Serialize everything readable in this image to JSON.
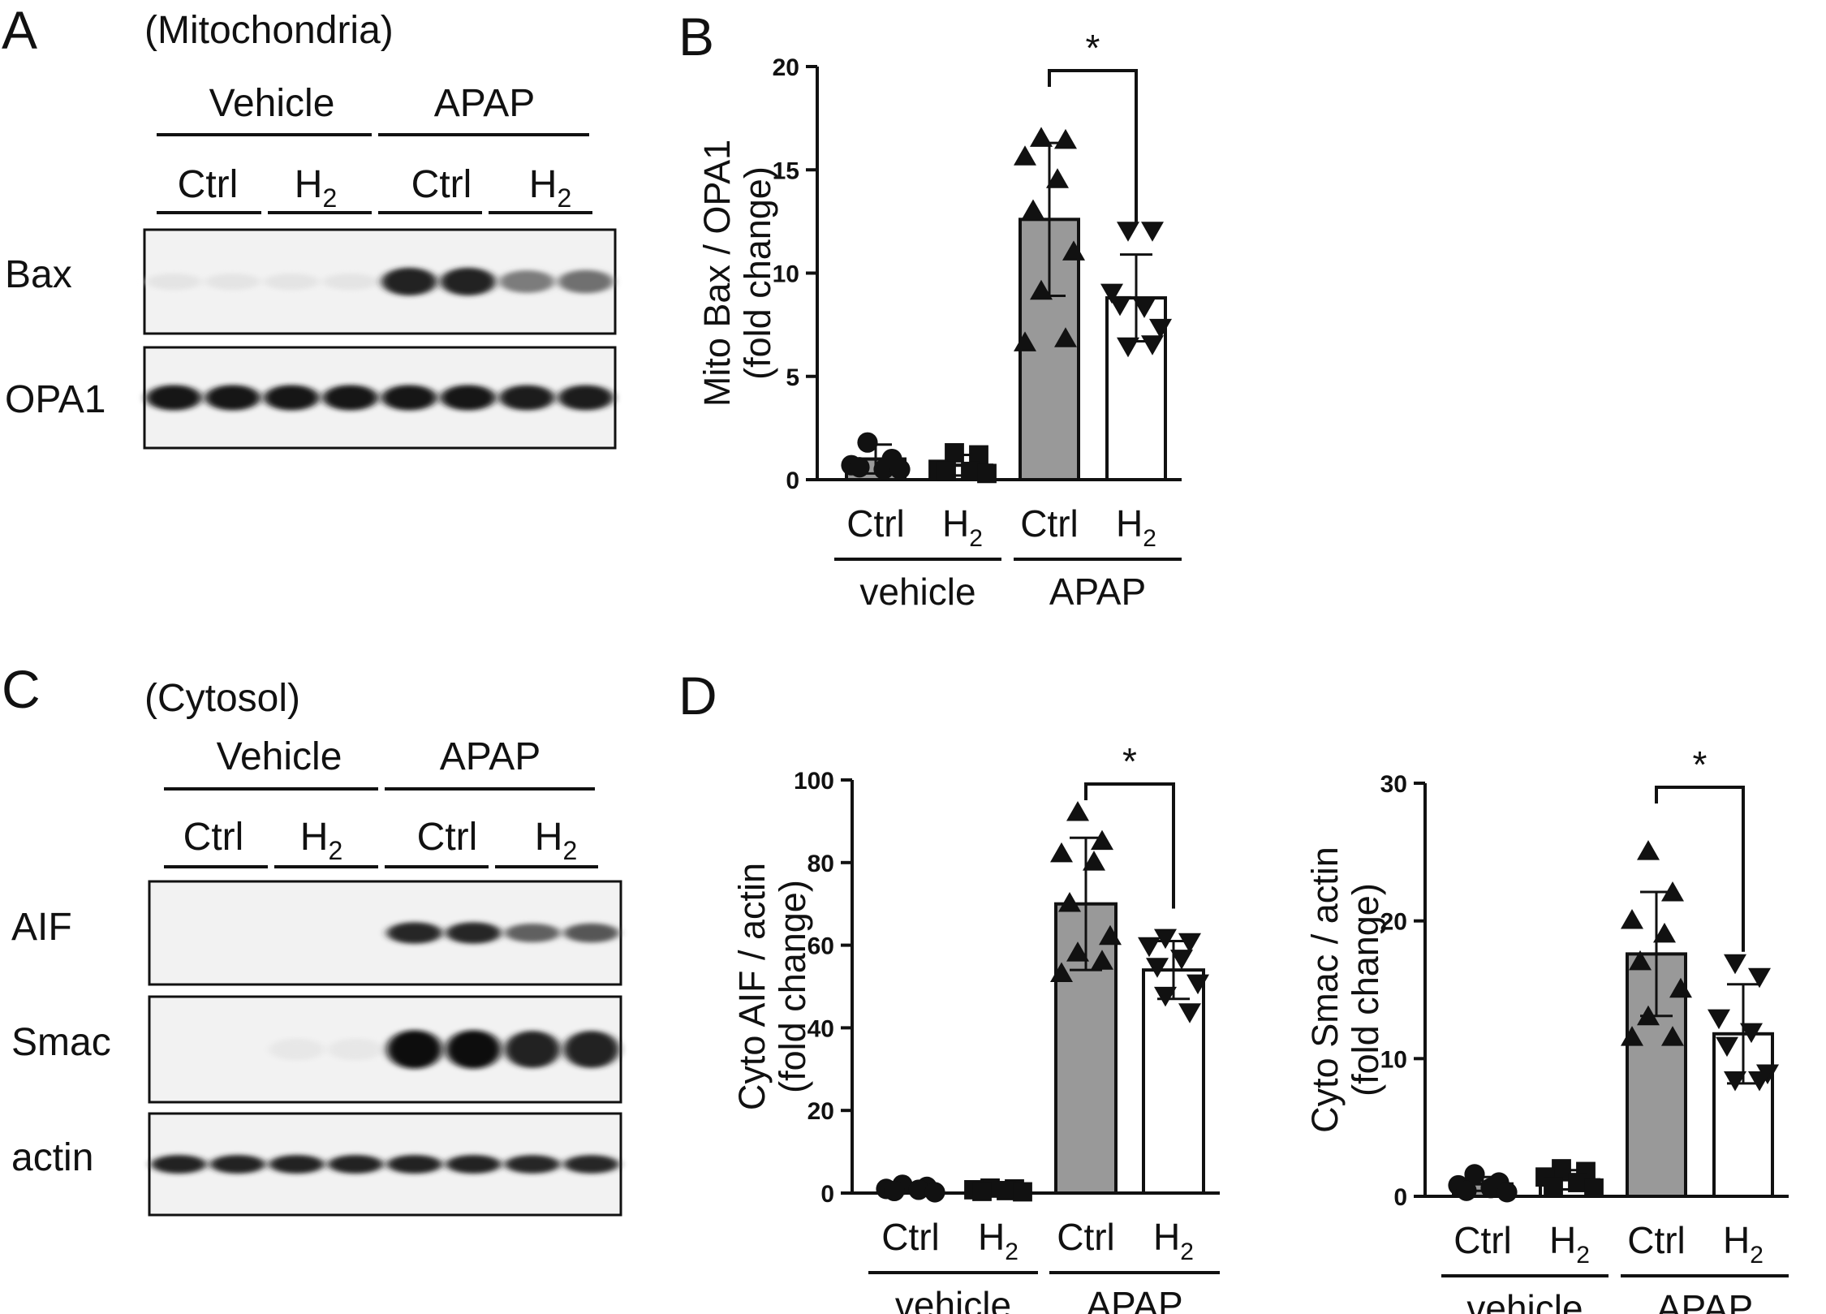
{
  "labels": {
    "vehicle_cap": "Vehicle",
    "apap": "APAP",
    "ctrl": "Ctrl",
    "h": "H",
    "sub2": "2",
    "vehicle_lc": "vehicle",
    "star": "*"
  },
  "panel_a": {
    "letter": "A",
    "title": "(Mitochondria)",
    "rows": [
      {
        "label": "Bax",
        "intensity": [
          0.03,
          0.03,
          0.03,
          0.03,
          0.9,
          0.9,
          0.5,
          0.55
        ]
      },
      {
        "label": "OPA1",
        "intensity": [
          0.95,
          0.95,
          0.95,
          0.95,
          0.95,
          0.95,
          0.93,
          0.93
        ]
      }
    ]
  },
  "panel_c": {
    "letter": "C",
    "title": "(Cytosol)",
    "rows": [
      {
        "label": "AIF",
        "intensity": [
          0.0,
          0.0,
          0.0,
          0.0,
          0.88,
          0.88,
          0.62,
          0.66
        ]
      },
      {
        "label": "Smac",
        "intensity": [
          0.0,
          0.0,
          0.02,
          0.02,
          0.98,
          0.98,
          0.9,
          0.9
        ]
      },
      {
        "label": "actin",
        "intensity": [
          0.9,
          0.9,
          0.9,
          0.9,
          0.9,
          0.9,
          0.88,
          0.88
        ]
      }
    ]
  },
  "panel_b": {
    "letter": "B"
  },
  "panel_d": {
    "letter": "D"
  },
  "chart_data": [
    {
      "type": "bar",
      "panel": "B",
      "ylabel_1": "Mito Bax / OPA1",
      "ylabel_2": "(fold change)",
      "ylim": [
        0,
        20
      ],
      "yticks": [
        0,
        5,
        10,
        15,
        20
      ],
      "categories": [
        "Ctrl",
        "H2",
        "Ctrl",
        "H2"
      ],
      "groups": [
        "vehicle",
        "APAP"
      ],
      "values": [
        1.0,
        0.7,
        12.6,
        8.8
      ],
      "sd": [
        0.7,
        0.5,
        3.7,
        2.1
      ],
      "points": [
        [
          1.8,
          1.0,
          0.7,
          0.5,
          0.6,
          0.5
        ],
        [
          1.3,
          1.2,
          0.5,
          0.4,
          0.4,
          0.3
        ],
        [
          16.5,
          16.4,
          15.6,
          14.5,
          13.0,
          11.0,
          9.1,
          6.8,
          6.6
        ],
        [
          12.1,
          12.1,
          9.1,
          8.4,
          8.5,
          7.4,
          6.5,
          6.6
        ]
      ],
      "markers": [
        "circle",
        "square",
        "triangle-up",
        "triangle-down"
      ],
      "fills": [
        "#999999",
        "#ffffff",
        "#999999",
        "#ffffff"
      ],
      "significance": {
        "between": [
          2,
          3
        ],
        "label": "*"
      }
    },
    {
      "type": "bar",
      "panel": "D-left",
      "ylabel_1": "Cyto AIF / actin",
      "ylabel_2": "(fold change)",
      "ylim": [
        0,
        100
      ],
      "yticks": [
        0,
        20,
        40,
        60,
        80,
        100
      ],
      "categories": [
        "Ctrl",
        "H2",
        "Ctrl",
        "H2"
      ],
      "groups": [
        "vehicle",
        "APAP"
      ],
      "values": [
        1.0,
        0.8,
        70.0,
        54.0
      ],
      "sd": [
        0.8,
        0.5,
        16.0,
        7.0
      ],
      "points": [
        [
          2.0,
          1.5,
          1.0,
          0.8,
          0.5,
          0.2
        ],
        [
          1.2,
          1.0,
          0.8,
          0.6,
          0.4,
          0.3
        ],
        [
          92,
          85,
          82,
          80,
          70,
          62,
          58,
          56,
          53
        ],
        [
          62,
          61,
          60,
          57,
          55,
          51,
          48,
          44
        ]
      ],
      "markers": [
        "circle",
        "square",
        "triangle-up",
        "triangle-down"
      ],
      "fills": [
        "#999999",
        "#ffffff",
        "#999999",
        "#ffffff"
      ],
      "significance": {
        "between": [
          2,
          3
        ],
        "label": "*"
      }
    },
    {
      "type": "bar",
      "panel": "D-right",
      "ylabel_1": "Cyto Smac / actin",
      "ylabel_2": "(fold change)",
      "ylim": [
        0,
        30
      ],
      "yticks": [
        0,
        10,
        20,
        30
      ],
      "categories": [
        "Ctrl",
        "H2",
        "Ctrl",
        "H2"
      ],
      "groups": [
        "vehicle",
        "APAP"
      ],
      "values": [
        0.9,
        1.2,
        17.6,
        11.8
      ],
      "sd": [
        0.5,
        0.7,
        4.5,
        3.6
      ],
      "points": [
        [
          1.6,
          1.0,
          0.8,
          0.6,
          0.4,
          0.3
        ],
        [
          2.0,
          1.8,
          1.4,
          1.0,
          0.7,
          0.6
        ],
        [
          25,
          22,
          20,
          19,
          17,
          15,
          13,
          11.5,
          11.5
        ],
        [
          17,
          16,
          13,
          12,
          11,
          9,
          8.5,
          8.5
        ]
      ],
      "markers": [
        "circle",
        "square",
        "triangle-up",
        "triangle-down"
      ],
      "fills": [
        "#999999",
        "#ffffff",
        "#999999",
        "#ffffff"
      ],
      "significance": {
        "between": [
          2,
          3
        ],
        "label": "*"
      }
    }
  ]
}
